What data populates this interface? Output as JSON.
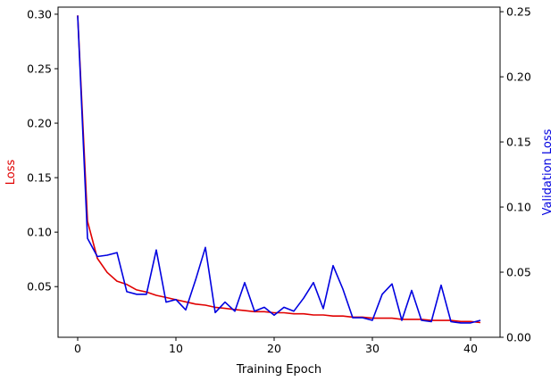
{
  "chart_data": {
    "type": "line",
    "xlabel": "Training Epoch",
    "ylabel": "Loss",
    "y2label": "Validation Loss",
    "xlim": [
      -2,
      43
    ],
    "ylim": [
      0.0035,
      0.3065
    ],
    "y2lim": [
      0.0,
      0.2535
    ],
    "xticks": [
      0,
      10,
      20,
      30,
      40
    ],
    "yticks": [
      0.05,
      0.1,
      0.15,
      0.2,
      0.25,
      0.3
    ],
    "y2ticks": [
      0.0,
      0.05,
      0.1,
      0.15,
      0.2,
      0.25
    ],
    "colors": {
      "loss": "#e00000",
      "validation": "#0000e0",
      "ylabel_color": "#e00000",
      "y2label_color": "#0000e0"
    },
    "x": [
      0,
      1,
      2,
      3,
      4,
      5,
      6,
      7,
      8,
      9,
      10,
      11,
      12,
      13,
      14,
      15,
      16,
      17,
      18,
      19,
      20,
      21,
      22,
      23,
      24,
      25,
      26,
      27,
      28,
      29,
      30,
      31,
      32,
      33,
      34,
      35,
      36,
      37,
      38,
      39,
      40,
      41
    ],
    "series": [
      {
        "axis": "left",
        "values": [
          0.299,
          0.11,
          0.076,
          0.063,
          0.055,
          0.052,
          0.047,
          0.045,
          0.042,
          0.04,
          0.038,
          0.036,
          0.034,
          0.033,
          0.031,
          0.03,
          0.029,
          0.028,
          0.027,
          0.027,
          0.026,
          0.026,
          0.025,
          0.025,
          0.024,
          0.024,
          0.023,
          0.023,
          0.022,
          0.022,
          0.021,
          0.021,
          0.021,
          0.02,
          0.02,
          0.02,
          0.019,
          0.019,
          0.019,
          0.018,
          0.018,
          0.017
        ]
      },
      {
        "axis": "right",
        "values": [
          0.247,
          0.076,
          0.062,
          0.063,
          0.065,
          0.035,
          0.033,
          0.033,
          0.067,
          0.027,
          0.029,
          0.021,
          0.044,
          0.069,
          0.019,
          0.027,
          0.02,
          0.042,
          0.02,
          0.023,
          0.017,
          0.023,
          0.02,
          0.03,
          0.042,
          0.022,
          0.055,
          0.037,
          0.015,
          0.015,
          0.013,
          0.033,
          0.041,
          0.013,
          0.036,
          0.013,
          0.012,
          0.04,
          0.012,
          0.011,
          0.011,
          0.013
        ]
      }
    ]
  }
}
